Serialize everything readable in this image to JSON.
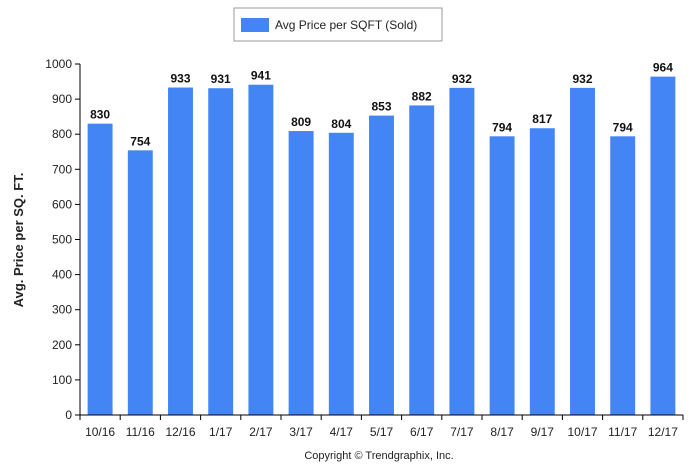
{
  "chart_data": {
    "type": "bar",
    "categories": [
      "10/16",
      "11/16",
      "12/16",
      "1/17",
      "2/17",
      "3/17",
      "4/17",
      "5/17",
      "6/17",
      "7/17",
      "8/17",
      "9/17",
      "10/17",
      "11/17",
      "12/17"
    ],
    "series": [
      {
        "name": "Avg Price per SQFT (Sold)",
        "values": [
          830,
          754,
          933,
          931,
          941,
          809,
          804,
          853,
          882,
          932,
          794,
          817,
          932,
          794,
          964
        ],
        "color": "#4385f5"
      }
    ],
    "data_labels": [
      "830",
      "754",
      "933",
      "931",
      "941",
      "809",
      "804",
      "853",
      "882",
      "932",
      "794",
      "817",
      "932",
      "794",
      "964"
    ],
    "yticks": [
      "0",
      "100",
      "200",
      "300",
      "400",
      "500",
      "600",
      "700",
      "800",
      "900",
      "1000"
    ],
    "ylim": [
      0,
      1000
    ],
    "ylabel": "Avg. Price per SQ. FT.",
    "xlabel": "",
    "grid": false,
    "legend_position": "top-center",
    "footer": "Copyright © Trendgraphix, Inc."
  }
}
